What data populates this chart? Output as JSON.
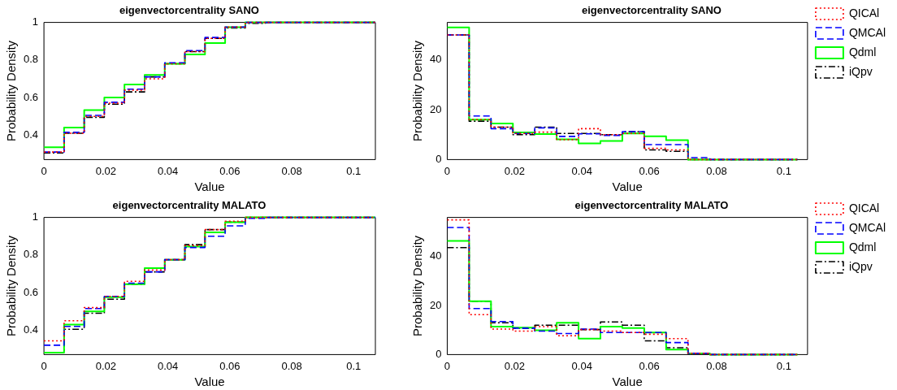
{
  "chart_data": [
    {
      "type": "step",
      "title": "eigenvectorcentrality SANO",
      "xlabel": "Value",
      "ylabel": "Probability Density",
      "x": [
        0,
        0.0065,
        0.013,
        0.0195,
        0.026,
        0.0325,
        0.039,
        0.0455,
        0.052,
        0.0585,
        0.065,
        0.0715,
        0.078,
        0.0845,
        0.091,
        0.0975,
        0.107
      ],
      "xlim": [
        0,
        0.107
      ],
      "xticks": [
        0,
        0.02,
        0.04,
        0.06,
        0.08,
        0.1
      ],
      "ylim": [
        0.27,
        1
      ],
      "yticks": [
        0.4,
        0.6,
        0.8,
        1
      ],
      "grid": false,
      "legend": false,
      "series": [
        {
          "color": "#ff0000",
          "line_style": "dotted",
          "values": [
            0.31,
            0.41,
            0.5,
            0.57,
            0.64,
            0.7,
            0.78,
            0.845,
            0.915,
            0.975,
            1,
            1,
            1,
            1,
            1,
            1,
            1
          ]
        },
        {
          "color": "#0000ff",
          "line_style": "dashed",
          "values": [
            0.31,
            0.415,
            0.505,
            0.575,
            0.645,
            0.71,
            0.785,
            0.85,
            0.92,
            0.975,
            1,
            1,
            1,
            1,
            1,
            1,
            1
          ]
        },
        {
          "color": "#00ff00",
          "line_style": "solid",
          "values": [
            0.335,
            0.44,
            0.533,
            0.6,
            0.67,
            0.72,
            0.78,
            0.83,
            0.89,
            0.975,
            1,
            1,
            1,
            1,
            1,
            1,
            1
          ]
        },
        {
          "color": "#000000",
          "line_style": "dashdot",
          "values": [
            0.305,
            0.41,
            0.495,
            0.565,
            0.63,
            0.71,
            0.78,
            0.845,
            0.915,
            0.97,
            0.995,
            1,
            1,
            1,
            1,
            1,
            1
          ]
        }
      ]
    },
    {
      "type": "step",
      "title": "eigenvectorcentrality SANO",
      "xlabel": "Value",
      "ylabel": "Probability Density",
      "x": [
        0,
        0.0065,
        0.013,
        0.0195,
        0.026,
        0.0325,
        0.039,
        0.0455,
        0.052,
        0.0585,
        0.065,
        0.0715,
        0.078,
        0.0845,
        0.091,
        0.0975,
        0.104
      ],
      "xlim": [
        0,
        0.107
      ],
      "xticks": [
        0,
        0.02,
        0.04,
        0.06,
        0.08,
        0.1
      ],
      "ylim": [
        0,
        55
      ],
      "yticks": [
        0,
        20,
        40
      ],
      "grid": false,
      "legend": "top right",
      "series": [
        {
          "name": "QICAl",
          "color": "#ff0000",
          "line_style": "dotted",
          "values": [
            50,
            16,
            13,
            10.5,
            11,
            8,
            12.4,
            10,
            10.5,
            4.5,
            3.9,
            0,
            0,
            0,
            0,
            0,
            0
          ]
        },
        {
          "name": "QMCAl",
          "color": "#0000ff",
          "line_style": "dashed",
          "values": [
            50,
            17.5,
            12.4,
            10.5,
            12.7,
            9.3,
            10.3,
            9.7,
            11.2,
            6,
            6,
            0.8,
            0,
            0,
            0,
            0,
            0
          ]
        },
        {
          "name": "Qdml",
          "color": "#00ff00",
          "line_style": "solid",
          "values": [
            53,
            16,
            14.5,
            10.9,
            10.2,
            8.1,
            6.5,
            7.5,
            10.5,
            9.3,
            7.8,
            0,
            0,
            0,
            0,
            0,
            0
          ]
        },
        {
          "name": "iQpv",
          "color": "#000000",
          "line_style": "dashdot",
          "values": [
            50,
            15.4,
            13,
            10,
            13,
            10.5,
            10.5,
            10,
            11.2,
            3.9,
            3.3,
            0,
            0,
            0,
            0,
            0,
            0
          ]
        }
      ]
    },
    {
      "type": "step",
      "title": "eigenvectorcentrality MALATO",
      "xlabel": "Value",
      "ylabel": "Probability Density",
      "x": [
        0,
        0.0065,
        0.013,
        0.0195,
        0.026,
        0.0325,
        0.039,
        0.0455,
        0.052,
        0.0585,
        0.065,
        0.0715,
        0.078,
        0.0845,
        0.091,
        0.0975,
        0.107
      ],
      "xlim": [
        0,
        0.107
      ],
      "xticks": [
        0,
        0.02,
        0.04,
        0.06,
        0.08,
        0.1
      ],
      "ylim": [
        0.27,
        1
      ],
      "yticks": [
        0.4,
        0.6,
        0.8,
        1
      ],
      "grid": false,
      "legend": false,
      "series": [
        {
          "color": "#ff0000",
          "line_style": "dotted",
          "values": [
            0.343,
            0.45,
            0.52,
            0.58,
            0.66,
            0.72,
            0.775,
            0.85,
            0.935,
            0.98,
            1,
            1,
            1,
            1,
            1,
            1,
            1
          ]
        },
        {
          "color": "#0000ff",
          "line_style": "dashed",
          "values": [
            0.32,
            0.42,
            0.515,
            0.58,
            0.65,
            0.71,
            0.775,
            0.84,
            0.9,
            0.955,
            0.995,
            1,
            1,
            1,
            1,
            1,
            1
          ]
        },
        {
          "color": "#00ff00",
          "line_style": "solid",
          "values": [
            0.28,
            0.43,
            0.5,
            0.575,
            0.645,
            0.73,
            0.775,
            0.845,
            0.92,
            0.975,
            1,
            1,
            1,
            1,
            1,
            1,
            1
          ]
        },
        {
          "color": "#000000",
          "line_style": "dashdot",
          "values": [
            0.28,
            0.405,
            0.49,
            0.565,
            0.645,
            0.71,
            0.775,
            0.855,
            0.935,
            0.975,
            1,
            1,
            1,
            1,
            1,
            1,
            1
          ]
        }
      ]
    },
    {
      "type": "step",
      "title": "eigenvectorcentrality MALATO",
      "xlabel": "Value",
      "ylabel": "Probability Density",
      "x": [
        0,
        0.0065,
        0.013,
        0.0195,
        0.026,
        0.0325,
        0.039,
        0.0455,
        0.052,
        0.0585,
        0.065,
        0.0715,
        0.078,
        0.0845,
        0.091,
        0.0975,
        0.104
      ],
      "xlim": [
        0,
        0.107
      ],
      "xticks": [
        0,
        0.02,
        0.04,
        0.06,
        0.08,
        0.1
      ],
      "ylim": [
        0,
        56
      ],
      "yticks": [
        0,
        20,
        40
      ],
      "grid": false,
      "legend": "top right",
      "series": [
        {
          "name": "QICAl",
          "color": "#ff0000",
          "line_style": "dotted",
          "values": [
            55,
            16.3,
            10.4,
            9.6,
            11.4,
            7.7,
            10.2,
            9.6,
            9,
            8.3,
            6.5,
            0.5,
            0,
            0,
            0,
            0,
            0
          ]
        },
        {
          "name": "QMCAl",
          "color": "#0000ff",
          "line_style": "dashed",
          "values": [
            51.9,
            18.8,
            13.5,
            10.8,
            9.6,
            8.6,
            10.4,
            9,
            9,
            9,
            4.9,
            0.5,
            0,
            0,
            0,
            0,
            0
          ]
        },
        {
          "name": "Qdml",
          "color": "#00ff00",
          "line_style": "solid",
          "values": [
            46.4,
            21.8,
            11.4,
            11,
            9.9,
            13,
            6.5,
            11.4,
            10.8,
            9,
            2,
            0.5,
            0,
            0,
            0,
            0,
            0
          ]
        },
        {
          "name": "iQpv",
          "color": "#000000",
          "line_style": "dashdot",
          "values": [
            43.7,
            21.8,
            13,
            10.8,
            12,
            12,
            10.2,
            13.3,
            12,
            5.6,
            2.8,
            0.5,
            0,
            0,
            0,
            0,
            0
          ]
        }
      ]
    }
  ]
}
